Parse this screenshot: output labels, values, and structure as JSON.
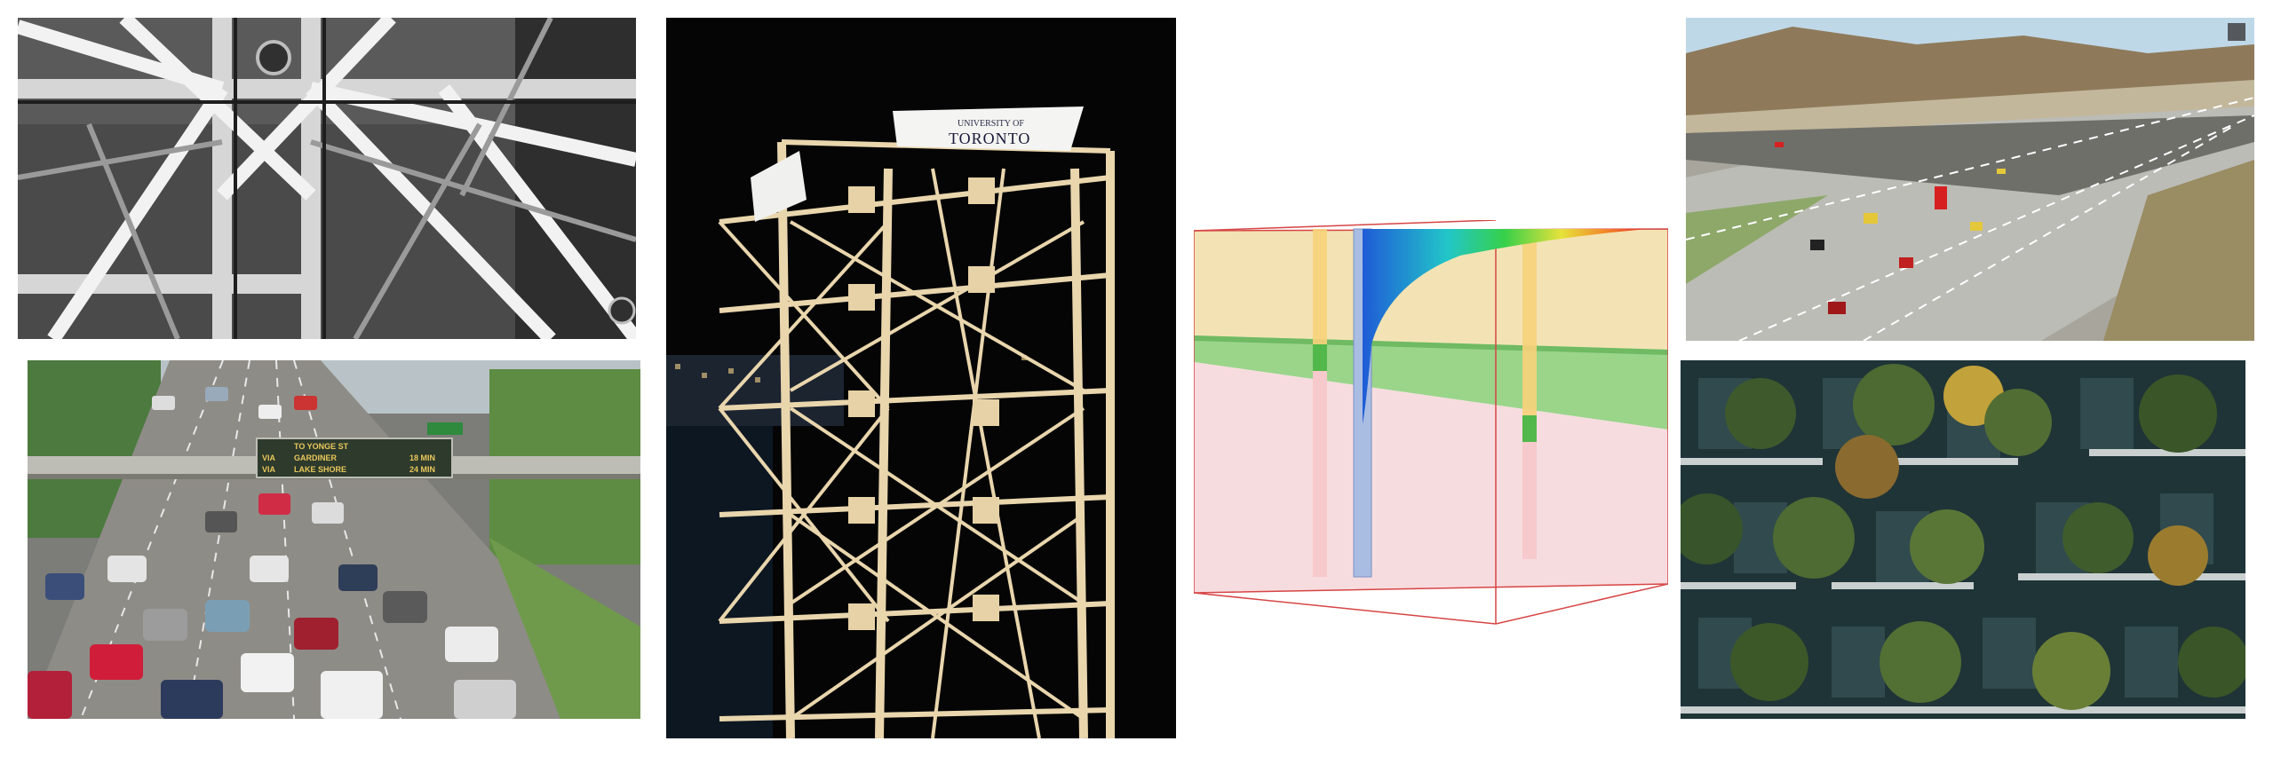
{
  "collage": {
    "panels": [
      {
        "id": "steel",
        "subject": "steel-truss-structure"
      },
      {
        "id": "traffic",
        "subject": "highway-traffic"
      },
      {
        "id": "tower",
        "subject": "wooden-tower-model"
      },
      {
        "id": "geo",
        "subject": "soil-model-diagram"
      },
      {
        "id": "highway",
        "subject": "highway-interchange-render"
      },
      {
        "id": "forest",
        "subject": "vertical-forest-facade"
      }
    ]
  },
  "traffic_sign": {
    "line1_left": "",
    "line1_mid": "TO YONGE ST",
    "line1_right": "",
    "line2_left": "VIA",
    "line2_mid": "GARDINER",
    "line2_right": "18 MIN",
    "line3_left": "VIA",
    "line3_mid": "LAKE SHORE",
    "line3_right": "24 MIN"
  },
  "tower_banner": {
    "small": "UNIVERSITY OF",
    "big": "TORONTO"
  },
  "colors": {
    "soil_top": "#f3e3b4",
    "soil_green": "#9ad58a",
    "soil_bottom": "#f7dcdf",
    "well_blue": "#a9bde3",
    "well_orange": "#f7d27a",
    "wood": "#e9d6ad"
  }
}
